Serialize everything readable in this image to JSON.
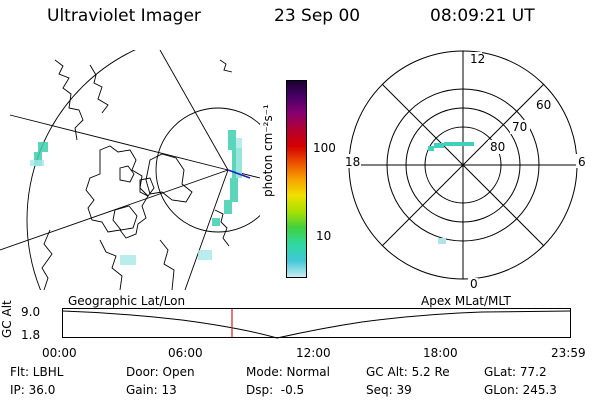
{
  "header": {
    "instrument": "Ultraviolet Imager",
    "date": "23 Sep 00",
    "time": "08:09:21 UT"
  },
  "colorbar": {
    "unit_label": "photon cm⁻²s⁻¹",
    "ticks": [
      "100",
      "10"
    ],
    "colors": [
      "#1a0030",
      "#4a0068",
      "#8a0070",
      "#b40030",
      "#d40000",
      "#ec5000",
      "#f8a000",
      "#f0e000",
      "#a8e000",
      "#40d040",
      "#30d8a0",
      "#40c8d8",
      "#c8ecf0"
    ]
  },
  "polar_plot": {
    "labels": {
      "top": "12",
      "bottom": "0",
      "left": "18",
      "right": "6",
      "lat_60": "60",
      "lat_70": "70",
      "lat_80": "80"
    }
  },
  "orbit_plot": {
    "left_caption": "Geographic Lat/Lon",
    "right_caption": "Apex MLat/MLT",
    "yaxis_label": "GC Alt",
    "y_ticks": [
      "9.0",
      "1.8"
    ],
    "x_ticks": [
      "00:00",
      "06:00",
      "12:00",
      "18:00",
      "23:59"
    ],
    "current_marker_color": "#d02020"
  },
  "info": {
    "flt": "Flt: LBHL",
    "ip": "IP: 36.0",
    "door": "Door: Open",
    "gain": "Gain: 13",
    "mode": "Mode: Normal",
    "dsp": "Dsp:  -0.5",
    "gc_alt": "GC Alt: 5.2 Re",
    "seq": "Seq: 39",
    "glat": "GLat: 77.2",
    "glon": "GLon: 245.3"
  }
}
